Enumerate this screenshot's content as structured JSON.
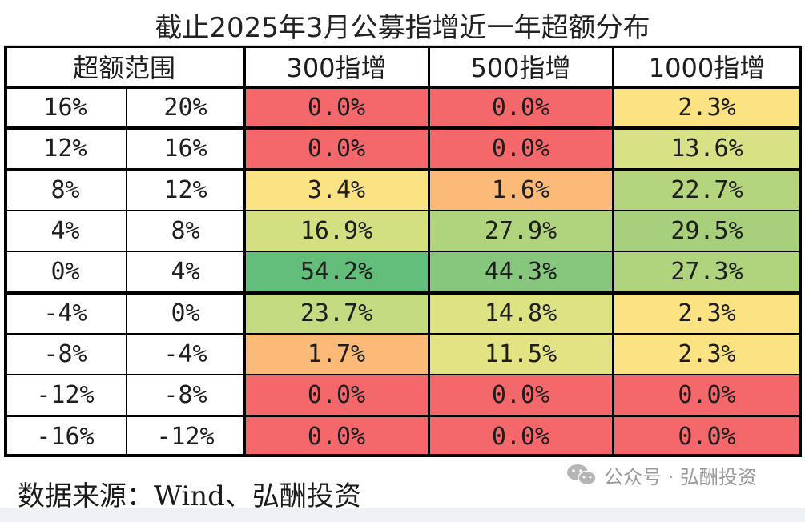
{
  "title": "截止2025年3月公募指增近一年超额分布",
  "source": "数据来源：Wind、弘酬投资",
  "watermark": "公众号 · 弘酬投资",
  "chart_data": {
    "type": "table",
    "title": "截止2025年3月公募指增近一年超额分布",
    "columns": [
      "超额范围",
      "300指增",
      "500指增",
      "1000指增"
    ],
    "rows": [
      {
        "low": "16%",
        "high": "20%",
        "values": [
          "0.0%",
          "0.0%",
          "2.3%"
        ],
        "colors": [
          "#f4676a",
          "#f4676a",
          "#fbe283"
        ]
      },
      {
        "low": "12%",
        "high": "16%",
        "values": [
          "0.0%",
          "0.0%",
          "13.6%"
        ],
        "colors": [
          "#f4676a",
          "#f4676a",
          "#d8e183"
        ]
      },
      {
        "low": "8%",
        "high": "12%",
        "values": [
          "3.4%",
          "1.6%",
          "22.7%"
        ],
        "colors": [
          "#fbe283",
          "#fbba77",
          "#b4d57e"
        ]
      },
      {
        "low": "4%",
        "high": "8%",
        "values": [
          "16.9%",
          "27.9%",
          "29.5%"
        ],
        "colors": [
          "#d4df82",
          "#b0d37e",
          "#a8d07c"
        ]
      },
      {
        "low": "0%",
        "high": "4%",
        "values": [
          "54.2%",
          "44.3%",
          "27.3%"
        ],
        "colors": [
          "#63be7b",
          "#86c67d",
          "#b0d37e"
        ]
      },
      {
        "low": "-4%",
        "high": "0%",
        "values": [
          "23.7%",
          "14.8%",
          "2.3%"
        ],
        "colors": [
          "#c4db81",
          "#dde283",
          "#fbe283"
        ]
      },
      {
        "low": "-8%",
        "high": "-4%",
        "values": [
          "1.7%",
          "11.5%",
          "2.3%"
        ],
        "colors": [
          "#fbba77",
          "#e4e384",
          "#fbe283"
        ]
      },
      {
        "low": "-12%",
        "high": "-8%",
        "values": [
          "0.0%",
          "0.0%",
          "0.0%"
        ],
        "colors": [
          "#f4676a",
          "#f4676a",
          "#f4676a"
        ]
      },
      {
        "low": "-16%",
        "high": "-12%",
        "values": [
          "0.0%",
          "0.0%",
          "0.0%"
        ],
        "colors": [
          "#f4676a",
          "#f4676a",
          "#f4676a"
        ]
      }
    ]
  }
}
